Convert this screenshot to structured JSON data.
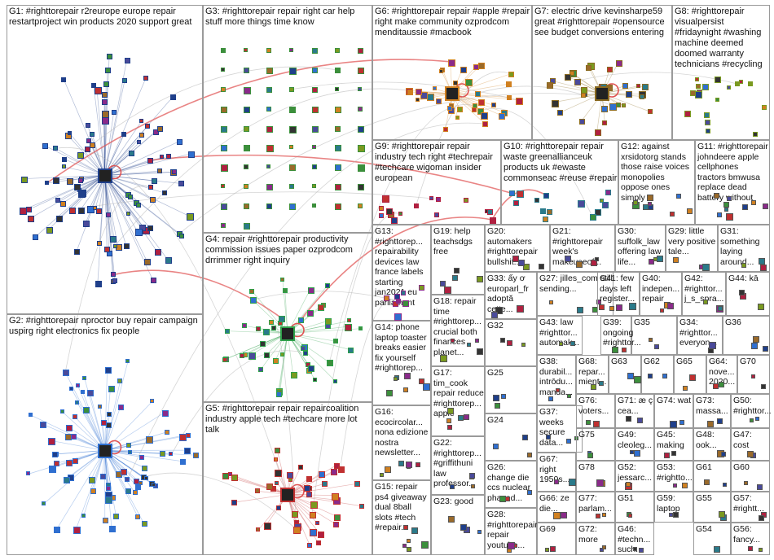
{
  "colors": {
    "background": "#ffffff",
    "border": "#9a9a9a",
    "edge": "#b3b3b3",
    "highlight": "#e05050"
  },
  "groups": [
    {
      "id": "G1",
      "label": "G1: #righttorepair r2reurope europe repair restartproject win products 2020 support great",
      "color": "#1f3f8a"
    },
    {
      "id": "G2",
      "label": "G2: #righttorepair nproctor buy repair campaign uspirg right electronics fix people",
      "color": "#2f6fd0"
    },
    {
      "id": "G3",
      "label": "G3: #righttorepair repair right car help stuff more things time know",
      "color": "#3c8f3c"
    },
    {
      "id": "G4",
      "label": "G4: repair #righttorepair productivity commission issues paper ozprodcom drrimmer right inquiry",
      "color": "#2fa04a"
    },
    {
      "id": "G5",
      "label": "G5: #righttorepair repair repaircoalition industry apple tech #techcare more lot talk",
      "color": "#c03030"
    },
    {
      "id": "G6",
      "label": "G6: #righttorepair repair #apple #repair right make community ozprodcom menditaussie #macbook",
      "color": "#d08020"
    },
    {
      "id": "G7",
      "label": "G7: electric drive kevinsharpe59 great #righttorepair #opensource see budget conversions entering",
      "color": "#8a6a20"
    },
    {
      "id": "G8",
      "label": "G8: #righttorepair visualpersist #fridaynight #washing machine deemed doomed warranty technicians #recycling",
      "color": "#7a9a20"
    },
    {
      "id": "G9",
      "label": "G9: #righttorepair repair industry tech right #techrepair #techcare wigoman insider european",
      "color": "#b02040"
    },
    {
      "id": "G10",
      "label": "G10: #righttorepair repair waste greenallianceuk products uk #ewaste commonseac #reuse #repair",
      "color": "#2a7a8a"
    },
    {
      "id": "G11",
      "label": "G11: #righttorepair johndeere apple cellphones tractors bmwusa replace dead battery without",
      "color": "#555555"
    },
    {
      "id": "G12",
      "label": "G12: against xrsidotorg stands those raise voices monopolies oppose ones simply",
      "color": "#555555"
    },
    {
      "id": "G13",
      "label": "G13: #righttorep... repairability devices law france labels starting jan2021 eu parliament",
      "color": "#8a2a8a"
    },
    {
      "id": "G14",
      "label": "G14: phone laptop toaster breaks easier fix yourself #righttorep...",
      "color": "#555555"
    },
    {
      "id": "G15",
      "label": "G15: repair ps4 giveaway dual 8ball slots #tech #repair...",
      "color": "#555555"
    },
    {
      "id": "G16",
      "label": "G16: ecocircolar... nona edizione nostra newsletter...",
      "color": "#555555"
    },
    {
      "id": "G17",
      "label": "G17: tim_cook repair reduce #righttorep... apple",
      "color": "#555555"
    },
    {
      "id": "G18",
      "label": "G18: repair time #righttorep... crucial both finances planet...",
      "color": "#555555"
    },
    {
      "id": "G19",
      "label": "G19: help teachsdgs free",
      "color": "#555555"
    },
    {
      "id": "G20",
      "label": "G20: automakers #righttorepair bullshit...",
      "color": "#555555"
    },
    {
      "id": "G21",
      "label": "G21: #righttorepair week's makeuseof...",
      "color": "#555555"
    },
    {
      "id": "G22",
      "label": "G22: #righttorep... #griffithuni law professor...",
      "color": "#555555"
    },
    {
      "id": "G23",
      "label": "G23: good",
      "color": "#555555"
    },
    {
      "id": "G24",
      "label": "G24",
      "color": "#555555"
    },
    {
      "id": "G25",
      "label": "G25",
      "color": "#555555"
    },
    {
      "id": "G26",
      "label": "G26: change die ccs nuclear phased...",
      "color": "#555555"
    },
    {
      "id": "G27",
      "label": "G27: jilles_com still sending...",
      "color": "#555555"
    },
    {
      "id": "G28",
      "label": "G28: #righttorepair repair youtube...",
      "color": "#555555"
    },
    {
      "id": "G29",
      "label": "G29: little very positive tale...",
      "color": "#555555"
    },
    {
      "id": "G30",
      "label": "G30: suffolk_law offering law life...",
      "color": "#555555"
    },
    {
      "id": "G31",
      "label": "G31: something laying around...",
      "color": "#555555"
    },
    {
      "id": "G32",
      "label": "G32",
      "color": "#555555"
    },
    {
      "id": "G33",
      "label": "G33: ấy ơ europarl_fr adoptă cette...",
      "color": "#555555"
    },
    {
      "id": "G34",
      "label": "G34: #righttor... everyon...",
      "color": "#555555"
    },
    {
      "id": "G35",
      "label": "G35",
      "color": "#555555"
    },
    {
      "id": "G36",
      "label": "G36",
      "color": "#555555"
    },
    {
      "id": "G37",
      "label": "G37: weeks secure data...",
      "color": "#555555"
    },
    {
      "id": "G38",
      "label": "G38: durabil... intrōdu... manda...",
      "color": "#555555"
    },
    {
      "id": "G39",
      "label": "G39: ongoing #righttor...",
      "color": "#555555"
    },
    {
      "id": "G40",
      "label": "G40: indepen... repair",
      "color": "#555555"
    },
    {
      "id": "G41",
      "label": "G41: few days left register...",
      "color": "#555555"
    },
    {
      "id": "G42",
      "label": "G42: #righttor... j_s_spra...",
      "color": "#555555"
    },
    {
      "id": "G43",
      "label": "G43: law #righttor... automak...",
      "color": "#555555"
    },
    {
      "id": "G44",
      "label": "G44: kā",
      "color": "#555555"
    },
    {
      "id": "G45",
      "label": "G45: making",
      "color": "#555555"
    },
    {
      "id": "G46",
      "label": "G46: #techn... such...",
      "color": "#555555"
    },
    {
      "id": "G47",
      "label": "G47: cost",
      "color": "#555555"
    },
    {
      "id": "G48",
      "label": "G48: ook...",
      "color": "#555555"
    },
    {
      "id": "G49",
      "label": "G49: cleoleg...",
      "color": "#555555"
    },
    {
      "id": "G50",
      "label": "G50: #righttor...",
      "color": "#555555"
    },
    {
      "id": "G51",
      "label": "G51",
      "color": "#555555"
    },
    {
      "id": "G52",
      "label": "G52: jessarc...",
      "color": "#555555"
    },
    {
      "id": "G53",
      "label": "G53: #rightto...",
      "color": "#555555"
    },
    {
      "id": "G54",
      "label": "G54",
      "color": "#555555"
    },
    {
      "id": "G55",
      "label": "G55",
      "color": "#555555"
    },
    {
      "id": "G56",
      "label": "G56: fancy...",
      "color": "#555555"
    },
    {
      "id": "G57",
      "label": "G57: #rightt...",
      "color": "#555555"
    },
    {
      "id": "G59",
      "label": "G59: laptop",
      "color": "#555555"
    },
    {
      "id": "G60",
      "label": "G60",
      "color": "#555555"
    },
    {
      "id": "G61",
      "label": "G61",
      "color": "#555555"
    },
    {
      "id": "G62",
      "label": "G62",
      "color": "#555555"
    },
    {
      "id": "G63",
      "label": "G63",
      "color": "#555555"
    },
    {
      "id": "G64",
      "label": "G64: nove... 2020...",
      "color": "#555555"
    },
    {
      "id": "G65",
      "label": "G65",
      "color": "#555555"
    },
    {
      "id": "G66",
      "label": "G66: ze die...",
      "color": "#555555"
    },
    {
      "id": "G67",
      "label": "G67: right 1950s...",
      "color": "#555555"
    },
    {
      "id": "G68",
      "label": "G68: repar... mient...",
      "color": "#555555"
    },
    {
      "id": "G69",
      "label": "G69",
      "color": "#555555"
    },
    {
      "id": "G70",
      "label": "G70",
      "color": "#555555"
    },
    {
      "id": "G71",
      "label": "G71: æ ç cea...",
      "color": "#555555"
    },
    {
      "id": "G72",
      "label": "G72: more",
      "color": "#555555"
    },
    {
      "id": "G73",
      "label": "G73: massa...",
      "color": "#555555"
    },
    {
      "id": "G74",
      "label": "G74: wat",
      "color": "#555555"
    },
    {
      "id": "G75",
      "label": "G75",
      "color": "#555555"
    },
    {
      "id": "G76",
      "label": "G76: voters...",
      "color": "#555555"
    },
    {
      "id": "G77",
      "label": "G77: parlam...",
      "color": "#555555"
    },
    {
      "id": "G78",
      "label": "G78",
      "color": "#555555"
    }
  ]
}
